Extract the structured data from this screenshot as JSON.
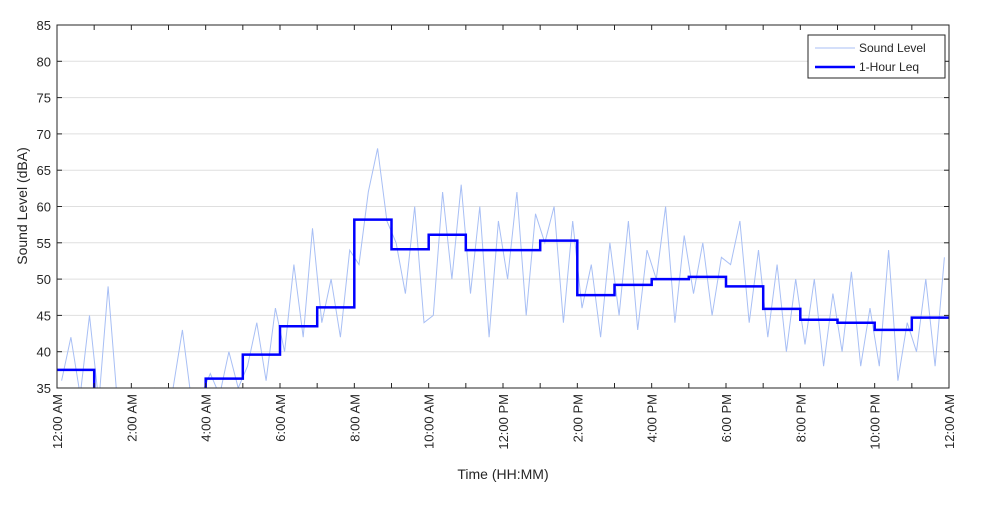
{
  "chart_data": {
    "type": "line",
    "xlabel": "Time (HH:MM)",
    "ylabel": "Sound Level (dBA)",
    "ylim": [
      35,
      85
    ],
    "yticks": [
      35,
      40,
      45,
      50,
      55,
      60,
      65,
      70,
      75,
      80,
      85
    ],
    "xlim_hours": [
      0,
      24
    ],
    "xtick_hours": [
      0,
      2,
      4,
      6,
      8,
      10,
      12,
      14,
      16,
      18,
      20,
      22,
      24
    ],
    "xtick_labels": [
      "12:00 AM",
      "2:00 AM",
      "4:00 AM",
      "6:00 AM",
      "8:00 AM",
      "10:00 AM",
      "12:00 PM",
      "2:00 PM",
      "4:00 PM",
      "6:00 PM",
      "8:00 PM",
      "10:00 PM",
      "12:00 AM"
    ],
    "grid": "horizontal",
    "legend": {
      "placement": "top-right",
      "entries": [
        "Sound Level",
        "1-Hour Leq"
      ]
    },
    "series": [
      {
        "name": "Sound Level",
        "color": "#a8bff5",
        "sample_interval_minutes": 15,
        "values": [
          36,
          42,
          34,
          45,
          33,
          49,
          33,
          32,
          33,
          34,
          35,
          33,
          35,
          43,
          33,
          34,
          37,
          34,
          40,
          35,
          38,
          44,
          36,
          46,
          40,
          52,
          42,
          57,
          44,
          50,
          42,
          54,
          52,
          62,
          68,
          58,
          55,
          48,
          60,
          44,
          45,
          62,
          50,
          63,
          48,
          60,
          42,
          58,
          50,
          62,
          45,
          59,
          55,
          60,
          44,
          58,
          46,
          52,
          42,
          55,
          45,
          58,
          43,
          54,
          50,
          60,
          44,
          56,
          48,
          55,
          45,
          53,
          52,
          58,
          44,
          54,
          42,
          52,
          40,
          50,
          41,
          50,
          38,
          48,
          40,
          51,
          38,
          46,
          38,
          54,
          36,
          44,
          40,
          50,
          38,
          53
        ]
      },
      {
        "name": "1-Hour Leq",
        "color": "#0000ff",
        "step_interval_hours": 1,
        "values": [
          37.5,
          33,
          32,
          34,
          36.3,
          39.6,
          43.5,
          46.1,
          58.2,
          54.1,
          56.1,
          54.0,
          54.0,
          55.3,
          47.8,
          49.2,
          50.0,
          50.3,
          49.0,
          45.9,
          44.4,
          44.0,
          43.0,
          44.7
        ]
      }
    ]
  }
}
